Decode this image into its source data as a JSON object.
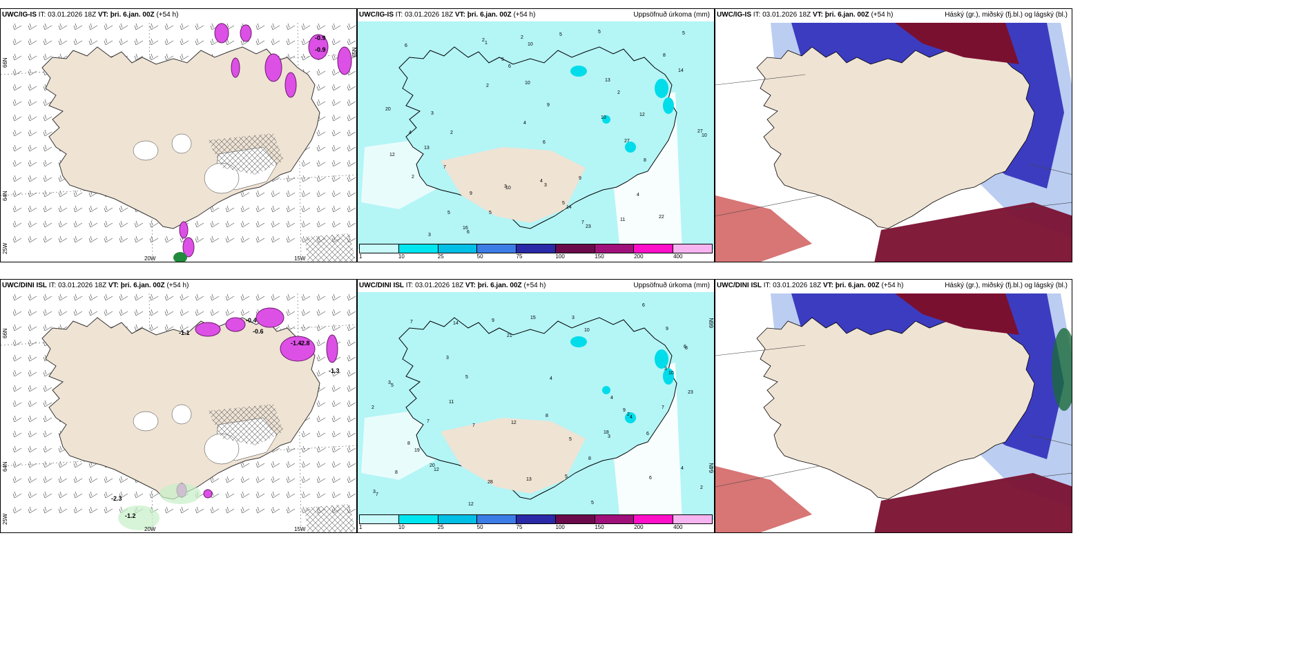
{
  "panels": [
    {
      "id": "p1",
      "model": "UWC/IG-IS",
      "it_label": "IT:",
      "it": "03.01.2026 18Z",
      "vt_label": "VT:",
      "vt": "þri. 6.jan. 00Z",
      "lead": "(+54 h)",
      "right": "",
      "lat_labels": [
        "66N",
        "64N",
        "25W"
      ],
      "lon_labels": [
        "20W",
        "15W"
      ],
      "right_lat": [
        "65N"
      ],
      "kind": "wind"
    },
    {
      "id": "p2",
      "model": "UWC/IG-IS",
      "it_label": "IT:",
      "it": "03.01.2026 18Z",
      "vt_label": "VT:",
      "vt": "þri. 6.jan. 00Z",
      "lead": "(+54 h)",
      "right": "Uppsöfnuð úrkoma (mm)",
      "kind": "precip"
    },
    {
      "id": "p3",
      "model": "UWC/IG-IS",
      "it_label": "IT:",
      "it": "03.01.2026 18Z",
      "vt_label": "VT:",
      "vt": "þri. 6.jan. 00Z",
      "lead": "(+54 h)",
      "right": "Háský (gr.), miðský (fj.bl.) og lágský (bl.)",
      "kind": "cloud"
    },
    {
      "id": "p4",
      "model": "UWC/DINI ISL",
      "it_label": "IT:",
      "it": "03.01.2026 18Z",
      "vt_label": "VT:",
      "vt": "þri. 6.jan. 00Z",
      "lead": "(+54 h)",
      "right": "",
      "lat_labels": [
        "66N",
        "64N",
        "25W"
      ],
      "lon_labels": [
        "20W",
        "15W"
      ],
      "kind": "wind"
    },
    {
      "id": "p5",
      "model": "UWC/DINI ISL",
      "it_label": "IT:",
      "it": "03.01.2026 18Z",
      "vt_label": "VT:",
      "vt": "þri. 6.jan. 00Z",
      "lead": "(+54 h)",
      "right": "Uppsöfnuð úrkoma (mm)",
      "right_lat": [
        "66N",
        "64N"
      ],
      "kind": "precip"
    },
    {
      "id": "p6",
      "model": "UWC/DINI ISL",
      "it_label": "IT:",
      "it": "03.01.2026 18Z",
      "vt_label": "VT:",
      "vt": "þri. 6.jan. 00Z",
      "lead": "(+54 h)",
      "right": "Háský (gr.), miðský (fj.bl.) og lágský (bl.)",
      "kind": "cloud"
    }
  ],
  "colorbar": {
    "labels": [
      "1",
      "10",
      "25",
      "50",
      "75",
      "100",
      "150",
      "200",
      "400"
    ],
    "colors": [
      "#c8fafa",
      "#00e6f0",
      "#00bfe6",
      "#3c7ce6",
      "#2a2aa8",
      "#6a0a4a",
      "#a0107a",
      "#ff10c8",
      "#f6b4f0"
    ]
  },
  "p2_numbers": [
    "1",
    "2",
    "3",
    "3",
    "4",
    "2",
    "6",
    "9",
    "5",
    "5",
    "7",
    "6",
    "10",
    "10",
    "11",
    "9",
    "12",
    "14",
    "22",
    "23",
    "14",
    "13",
    "27",
    "27",
    "20",
    "8",
    "6",
    "8",
    "13",
    "5",
    "7",
    "10",
    "16",
    "12",
    "2",
    "4",
    "5",
    "3",
    "2",
    "5",
    "4",
    "6",
    "5",
    "2",
    "9",
    "10",
    "5",
    "10",
    "2",
    "3",
    "4"
  ],
  "p5_numbers": [
    "3",
    "3",
    "5",
    "6",
    "4",
    "2",
    "4",
    "5",
    "6",
    "7",
    "10",
    "20",
    "23",
    "11",
    "7",
    "12",
    "8",
    "28",
    "19",
    "21",
    "12",
    "13",
    "14",
    "8",
    "7",
    "5",
    "9",
    "10",
    "12",
    "18",
    "15",
    "9",
    "4",
    "6",
    "5",
    "7",
    "8",
    "4",
    "3",
    "2",
    "2",
    "3",
    "6",
    "8",
    "9",
    "7",
    "8",
    "3",
    "3",
    "5"
  ],
  "p4_labels": [
    "-1.1",
    "-0.4",
    "-0.6",
    "-1.4",
    "-2.8",
    "-1.3",
    "-2.3",
    "-1.2"
  ],
  "p1_labels": [
    "-0.9",
    "-0.9"
  ],
  "colors": {
    "land": "#efe3d4",
    "precip_light": "#b4f5f6",
    "precip_mid": "#00dcea",
    "cloud_high": "#7a1030",
    "cloud_mid": "#3c3cc0",
    "cloud_low": "#b4c8f0",
    "snow_pink": "#dc50e6"
  }
}
